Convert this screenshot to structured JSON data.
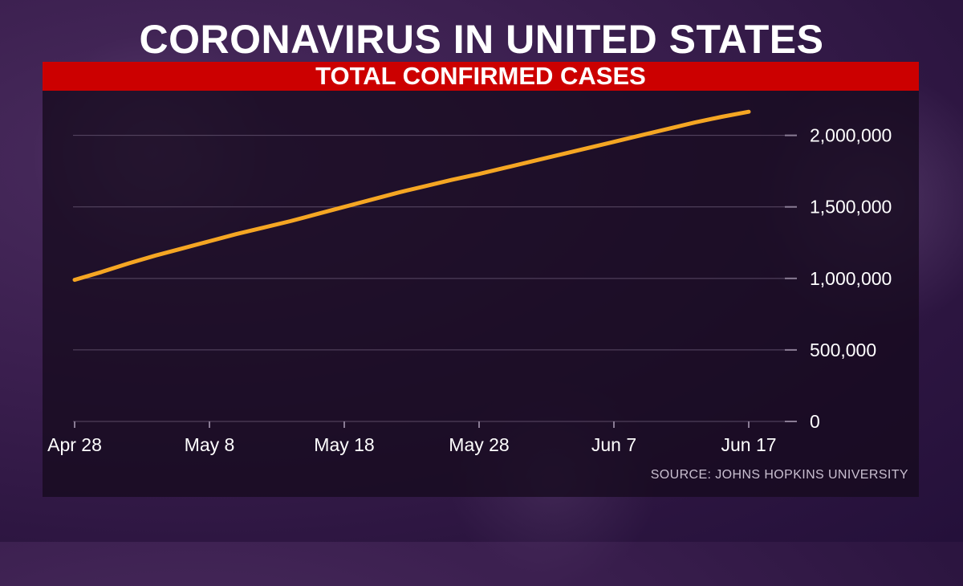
{
  "header": {
    "title": "CORONAVIRUS IN UNITED STATES",
    "subtitle": "TOTAL CONFIRMED CASES"
  },
  "source": "SOURCE: JOHNS HOPKINS UNIVERSITY",
  "colors": {
    "line": "#f5a623",
    "banner": "#cc0000",
    "grid": "#5a4a66"
  },
  "chart_data": {
    "type": "line",
    "title": "TOTAL CONFIRMED CASES",
    "xlabel": "",
    "ylabel": "",
    "x_tick_labels": [
      "Apr 28",
      "May 8",
      "May 18",
      "May 28",
      "Jun 7",
      "Jun 17"
    ],
    "y_tick_labels": [
      "0",
      "500,000",
      "1,000,000",
      "1,500,000",
      "2,000,000"
    ],
    "y_ticks": [
      0,
      500000,
      1000000,
      1500000,
      2000000
    ],
    "ylim": [
      0,
      2200000
    ],
    "xlim": [
      "2020-04-28",
      "2020-06-17"
    ],
    "grid": true,
    "legend": "none",
    "series": [
      {
        "x": [
          "2020-04-28",
          "2020-04-30",
          "2020-05-02",
          "2020-05-04",
          "2020-05-06",
          "2020-05-08",
          "2020-05-10",
          "2020-05-12",
          "2020-05-14",
          "2020-05-16",
          "2020-05-18",
          "2020-05-20",
          "2020-05-22",
          "2020-05-24",
          "2020-05-26",
          "2020-05-28",
          "2020-05-30",
          "2020-06-01",
          "2020-06-03",
          "2020-06-05",
          "2020-06-07",
          "2020-06-09",
          "2020-06-11",
          "2020-06-13",
          "2020-06-15",
          "2020-06-17"
        ],
        "values": [
          990000,
          1045000,
          1105000,
          1160000,
          1210000,
          1260000,
          1310000,
          1355000,
          1400000,
          1450000,
          1500000,
          1550000,
          1600000,
          1645000,
          1690000,
          1730000,
          1775000,
          1820000,
          1865000,
          1910000,
          1955000,
          2000000,
          2045000,
          2090000,
          2130000,
          2165000
        ]
      }
    ]
  }
}
